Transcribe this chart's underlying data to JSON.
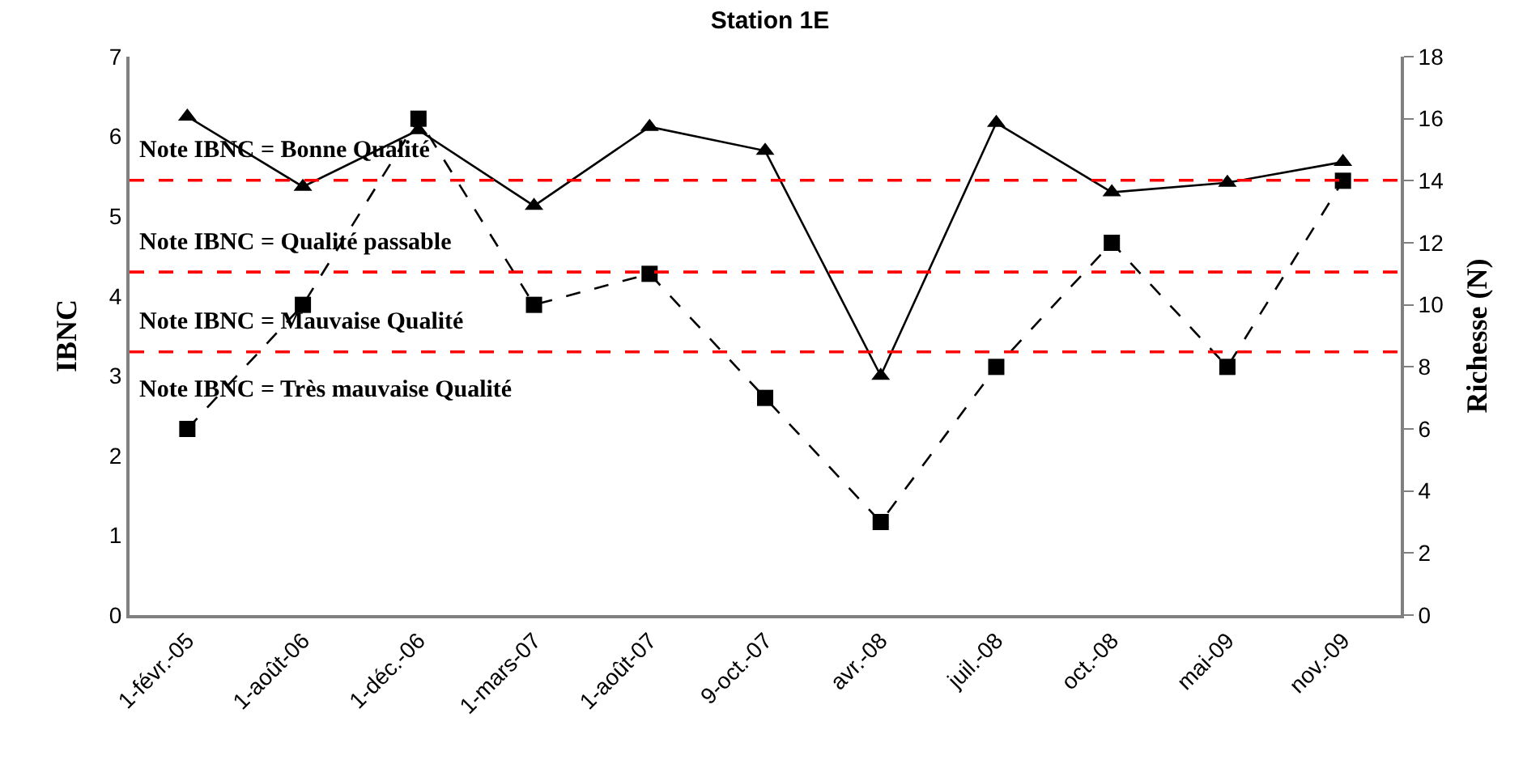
{
  "chart_data": {
    "type": "line",
    "title": "Station 1E",
    "ylabel": "IBNC",
    "y2label": "Richesse (N)",
    "categories": [
      "1-févr.-05",
      "1-août-06",
      "1-déc.-06",
      "1-mars-07",
      "1-août-07",
      "9-oct.-07",
      "avr.-08",
      "juil.-08",
      "oct.-08",
      "mai-09",
      "nov.-09"
    ],
    "series": [
      {
        "color": "#000000",
        "marker": "triangle",
        "line_style": "solid",
        "values": [
          6.25,
          5.37,
          6.08,
          5.13,
          6.12,
          5.82,
          3.0,
          6.17,
          5.3,
          5.42,
          5.68
        ]
      },
      {
        "color": "#000000",
        "marker": "square",
        "line_style": "dashed",
        "axis": "y2",
        "values": [
          6,
          10,
          16,
          10,
          11,
          7,
          3,
          8,
          12,
          8,
          14
        ]
      }
    ],
    "ylim": [
      0,
      7
    ],
    "yticks": [
      0,
      1,
      2,
      3,
      4,
      5,
      6,
      7
    ],
    "y2lim": [
      0,
      18
    ],
    "y2ticks": [
      0,
      2,
      4,
      6,
      8,
      10,
      12,
      14,
      16,
      18
    ],
    "ref_lines": [
      {
        "axis": "y",
        "value": 5.45,
        "color": "#ff0000",
        "line_style": "dashed"
      },
      {
        "axis": "y",
        "value": 4.3,
        "color": "#ff0000",
        "line_style": "dashed"
      },
      {
        "axis": "y",
        "value": 3.3,
        "color": "#ff0000",
        "line_style": "dashed"
      }
    ],
    "annotations": [
      "Note IBNC = Bonne Qualité",
      "Note IBNC = Qualité passable",
      "Note IBNC = Mauvaise Qualité",
      "Note IBNC = Très mauvaise Qualité"
    ]
  }
}
